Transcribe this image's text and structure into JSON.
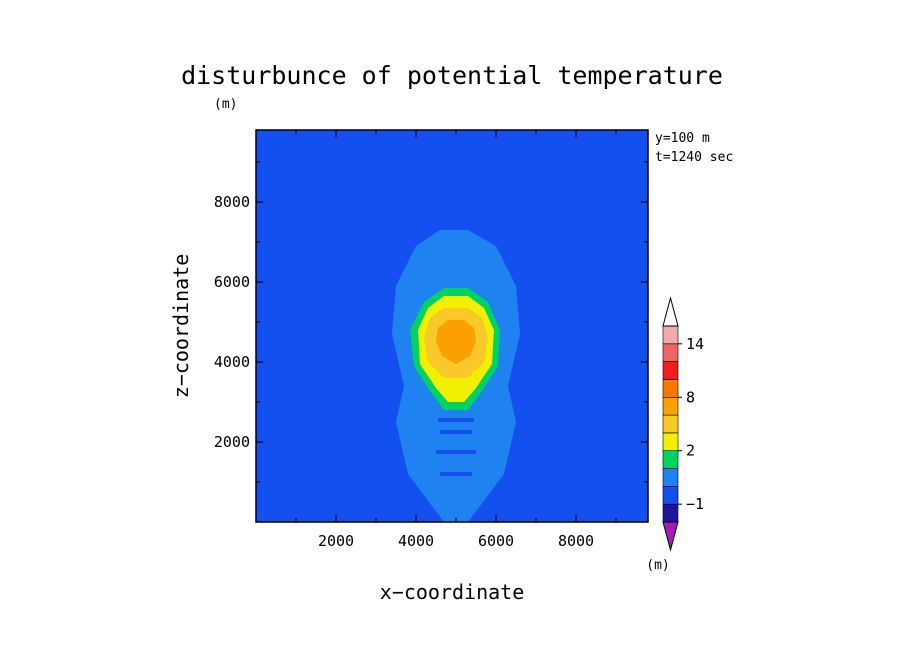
{
  "chart_data": {
    "type": "heatmap",
    "title": "disturbunce of potential temperature",
    "unit_top": "(m)",
    "unit_colorbar": "(m)",
    "xlabel": "x−coordinate",
    "ylabel": "z−coordinate",
    "annotation_lines": [
      "y=100 m",
      "t=1240 sec"
    ],
    "xlim": [
      0,
      9800
    ],
    "ylim": [
      0,
      9800
    ],
    "x_ticks": [
      2000,
      4000,
      6000,
      8000
    ],
    "y_ticks": [
      2000,
      4000,
      6000,
      8000
    ],
    "x_tick_labels": [
      "2000",
      "4000",
      "6000",
      "8000"
    ],
    "y_tick_labels": [
      "2000",
      "4000",
      "6000",
      "8000"
    ],
    "background_level_color": "#1450f0",
    "colorbar": {
      "levels_bottom_to_top": [
        {
          "color": "#a020b4"
        },
        {
          "color": "#1e14a0"
        },
        {
          "color": "#1450f0"
        },
        {
          "color": "#1e82f0"
        },
        {
          "color": "#00d264"
        },
        {
          "color": "#f0f000"
        },
        {
          "color": "#fac828"
        },
        {
          "color": "#faa000"
        },
        {
          "color": "#fa7800"
        },
        {
          "color": "#f01e1e"
        },
        {
          "color": "#f06464"
        },
        {
          "color": "#f0aaaa"
        },
        {
          "color": "#ffffff"
        }
      ],
      "labels": [
        {
          "value": "−1",
          "boundary": 2
        },
        {
          "value": "2",
          "boundary": 5
        },
        {
          "value": "8",
          "boundary": 8
        },
        {
          "value": "14",
          "boundary": 11
        }
      ]
    },
    "contour_regions": [
      {
        "level": "light-blue",
        "color": "#1e82f0",
        "polygon": [
          [
            4600,
            7300
          ],
          [
            5300,
            7300
          ],
          [
            6000,
            6900
          ],
          [
            6500,
            5900
          ],
          [
            6600,
            4700
          ],
          [
            6300,
            3400
          ],
          [
            6500,
            2500
          ],
          [
            6200,
            1200
          ],
          [
            5300,
            0
          ],
          [
            4700,
            0
          ],
          [
            3800,
            1200
          ],
          [
            3500,
            2500
          ],
          [
            3700,
            3400
          ],
          [
            3400,
            4700
          ],
          [
            3500,
            5900
          ],
          [
            4000,
            6900
          ]
        ]
      },
      {
        "level": "green",
        "color": "#00d264",
        "polygon": [
          [
            4700,
            5850
          ],
          [
            5300,
            5850
          ],
          [
            5800,
            5500
          ],
          [
            6100,
            4800
          ],
          [
            6050,
            3900
          ],
          [
            5600,
            3200
          ],
          [
            5300,
            2800
          ],
          [
            4700,
            2800
          ],
          [
            4400,
            3200
          ],
          [
            3950,
            3900
          ],
          [
            3850,
            4800
          ],
          [
            4200,
            5500
          ]
        ]
      },
      {
        "level": "yellow",
        "color": "#f0f000",
        "polygon": [
          [
            4700,
            5650
          ],
          [
            5300,
            5650
          ],
          [
            5700,
            5350
          ],
          [
            5950,
            4800
          ],
          [
            5900,
            3950
          ],
          [
            5500,
            3350
          ],
          [
            5200,
            3000
          ],
          [
            4800,
            3000
          ],
          [
            4500,
            3350
          ],
          [
            4100,
            3950
          ],
          [
            4050,
            4800
          ],
          [
            4300,
            5350
          ]
        ]
      },
      {
        "level": "light-orange",
        "color": "#fac828",
        "polygon": [
          [
            4700,
            5350
          ],
          [
            5300,
            5350
          ],
          [
            5650,
            5100
          ],
          [
            5800,
            4600
          ],
          [
            5700,
            4000
          ],
          [
            5300,
            3600
          ],
          [
            4700,
            3600
          ],
          [
            4300,
            4000
          ],
          [
            4200,
            4600
          ],
          [
            4350,
            5100
          ]
        ]
      },
      {
        "level": "orange",
        "color": "#faa000",
        "polygon": [
          [
            4800,
            5050
          ],
          [
            5200,
            5050
          ],
          [
            5450,
            4850
          ],
          [
            5500,
            4500
          ],
          [
            5350,
            4150
          ],
          [
            5000,
            3950
          ],
          [
            4650,
            4150
          ],
          [
            4500,
            4500
          ],
          [
            4550,
            4850
          ]
        ]
      }
    ]
  }
}
